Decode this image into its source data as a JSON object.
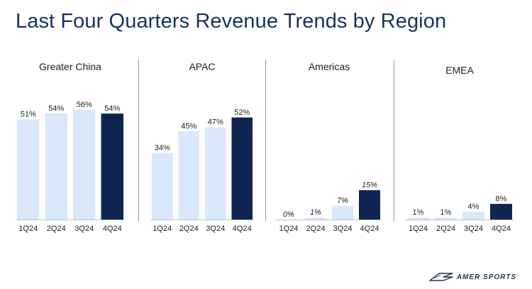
{
  "title": "Last Four Quarters Revenue Trends by Region",
  "logo": {
    "name": "amer-sports-logo",
    "text": "AMER SPORTS"
  },
  "colors": {
    "title": "#17335e",
    "bar_light": "#d9e8fb",
    "bar_dark": "#0f2551",
    "divider": "#8a9bb0"
  },
  "chart_data": [
    {
      "type": "bar",
      "title": "Greater China",
      "categories": [
        "1Q24",
        "2Q24",
        "3Q24",
        "4Q24"
      ],
      "values": [
        51,
        54,
        56,
        54
      ],
      "labels": [
        "51%",
        "54%",
        "56%",
        "54%"
      ],
      "highlight_index": 3,
      "italic_labels": false
    },
    {
      "type": "bar",
      "title": "APAC",
      "categories": [
        "1Q24",
        "2Q24",
        "3Q24",
        "4Q24"
      ],
      "values": [
        34,
        45,
        47,
        52
      ],
      "labels": [
        "34%",
        "45%",
        "47%",
        "52%"
      ],
      "highlight_index": 3,
      "italic_labels": false
    },
    {
      "type": "bar",
      "title": "Americas",
      "categories": [
        "1Q24",
        "2Q24",
        "3Q24",
        "4Q24"
      ],
      "values": [
        0,
        1,
        7,
        15
      ],
      "labels": [
        "0%",
        "1%",
        "7%",
        "15%"
      ],
      "highlight_index": 3,
      "italic_labels": true
    },
    {
      "type": "bar",
      "title": "EMEA",
      "categories": [
        "1Q24",
        "2Q24",
        "3Q24",
        "4Q24"
      ],
      "values": [
        1,
        1,
        4,
        8
      ],
      "labels": [
        "1%",
        "1%",
        "4%",
        "8%"
      ],
      "highlight_index": 3,
      "italic_labels": false
    }
  ]
}
